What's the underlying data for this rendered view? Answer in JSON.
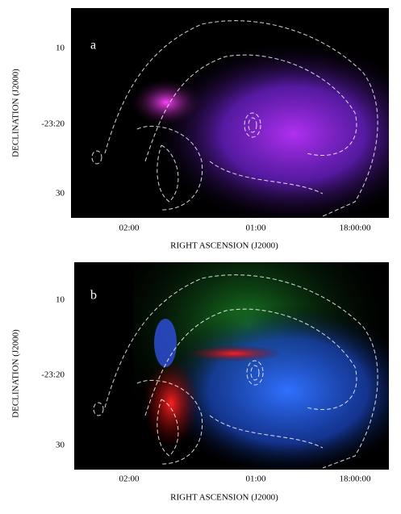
{
  "panels": [
    {
      "label": "a",
      "y_ticks": [
        "10",
        "-23:20",
        "30"
      ],
      "x_ticks": [
        "02:00",
        "01:00",
        "18:00:00"
      ],
      "x_axis_label": "RIGHT ASCENSION  (J2000)",
      "y_axis_label": "DECLINATION  (J2000)"
    },
    {
      "label": "b",
      "y_ticks": [
        "10",
        "-23:20",
        "30"
      ],
      "x_ticks": [
        "02:00",
        "01:00",
        "18:00:00"
      ],
      "x_axis_label": "RIGHT ASCENSION  (J2000)",
      "y_axis_label": "DECLINATION  (J2000)"
    }
  ]
}
